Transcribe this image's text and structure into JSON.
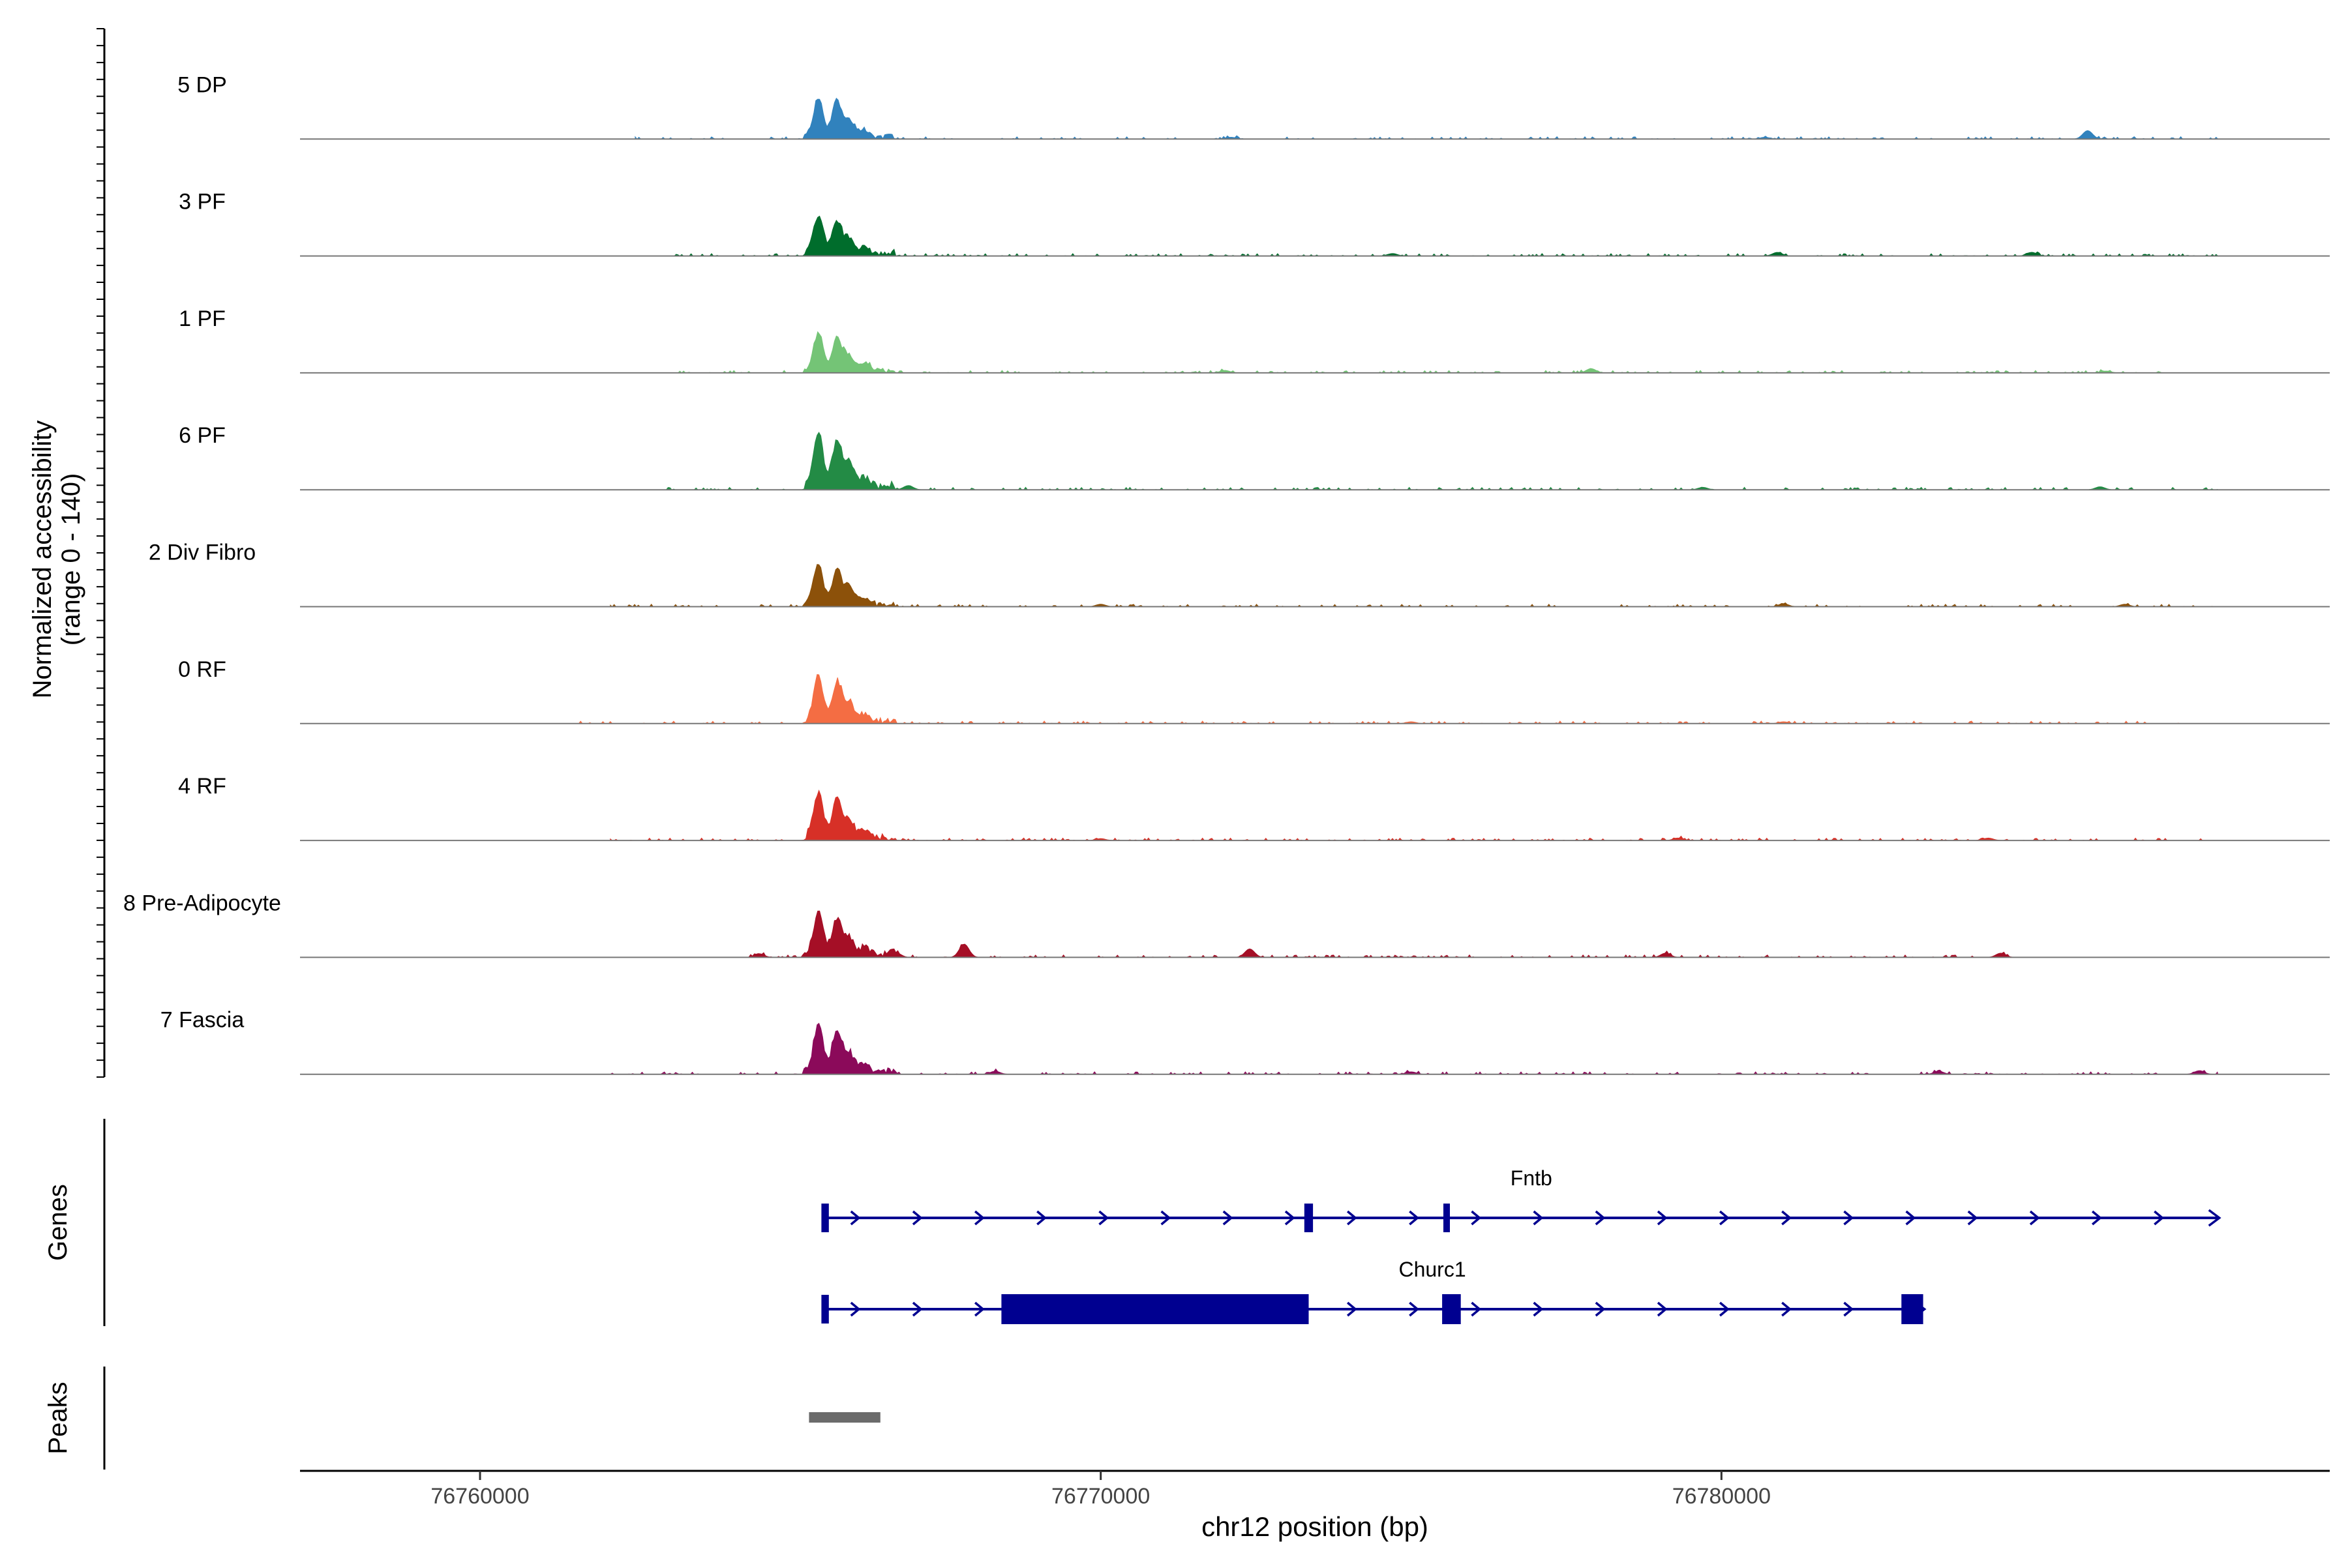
{
  "chart_data": {
    "type": "area",
    "xlabel": "chr12 position (bp)",
    "ylabel": "Normalized accessibility",
    "ylabel_range": "(range 0 - 140)",
    "ylim": [
      0,
      140
    ],
    "xlim": [
      76757100,
      76789800
    ],
    "x_ticks": [
      {
        "value": 76760000,
        "label": "76760000"
      },
      {
        "value": 76770000,
        "label": "76770000"
      },
      {
        "value": 76780000,
        "label": "76780000"
      }
    ],
    "grid": false,
    "legend": "none",
    "tracks": [
      {
        "name": "5 DP",
        "color": "#3182bd",
        "data_start": 76762500,
        "data_end": 76788000,
        "peak_scale": 0.72,
        "extra_peaks": [
          [
            76785900,
            14
          ],
          [
            76772100,
            3
          ],
          [
            76780700,
            3
          ]
        ]
      },
      {
        "name": "3 PF",
        "color": "#006d2c",
        "data_start": 76763100,
        "data_end": 76788000,
        "peak_scale": 0.68,
        "extra_peaks": [
          [
            76780900,
            6
          ],
          [
            76785000,
            6
          ],
          [
            76774700,
            4
          ]
        ]
      },
      {
        "name": "1 PF",
        "color": "#74c476",
        "data_start": 76763100,
        "data_end": 76787400,
        "peak_scale": 0.68,
        "extra_peaks": [
          [
            76777900,
            7
          ],
          [
            76772000,
            4
          ],
          [
            76786200,
            3
          ]
        ]
      },
      {
        "name": "6 PF",
        "color": "#238b45",
        "data_start": 76763000,
        "data_end": 76788000,
        "peak_scale": 1.0,
        "extra_peaks": [
          [
            76766900,
            7
          ],
          [
            76786100,
            5
          ],
          [
            76779700,
            4
          ]
        ]
      },
      {
        "name": "2 Div Fibro",
        "color": "#8c510a",
        "data_start": 76762100,
        "data_end": 76787900,
        "peak_scale": 0.72,
        "extra_peaks": [
          [
            76781000,
            5
          ],
          [
            76786500,
            4
          ],
          [
            76770000,
            4
          ]
        ]
      },
      {
        "name": "0 RF",
        "color": "#f46d43",
        "data_start": 76761500,
        "data_end": 76787700,
        "peak_scale": 0.82,
        "extra_peaks": [
          [
            76781000,
            3
          ],
          [
            76775000,
            3
          ]
        ]
      },
      {
        "name": "4 RF",
        "color": "#d73027",
        "data_start": 76762100,
        "data_end": 76787900,
        "peak_scale": 0.82,
        "extra_peaks": [
          [
            76779300,
            4
          ],
          [
            76784300,
            4
          ],
          [
            76770000,
            3
          ]
        ]
      },
      {
        "name": "8 Pre-Adipocyte",
        "color": "#a50f26",
        "data_start": 76764300,
        "data_end": 76784700,
        "peak_scale": 0.78,
        "extra_peaks": [
          [
            76767800,
            22
          ],
          [
            76772400,
            14
          ],
          [
            76779100,
            7
          ],
          [
            76784500,
            7
          ],
          [
            76764500,
            6
          ],
          [
            76766700,
            8
          ]
        ]
      },
      {
        "name": "7 Fascia",
        "color": "#8b0a5a",
        "data_start": 76762100,
        "data_end": 76788000,
        "peak_scale": 0.85,
        "extra_peaks": [
          [
            76787700,
            6
          ],
          [
            76783500,
            5
          ],
          [
            76775000,
            4
          ],
          [
            76768300,
            5
          ]
        ]
      }
    ],
    "main_peaks": [
      [
        76765450,
        92
      ],
      [
        76765750,
        78
      ],
      [
        76765950,
        38
      ],
      [
        76766200,
        16
      ]
    ],
    "genes_label": "Genes",
    "genes": [
      {
        "name": "Fntb",
        "start": 76765550,
        "end": 76788000,
        "strand": "+",
        "exons": [
          [
            76765500,
            76765620
          ],
          [
            76773280,
            76773420
          ],
          [
            76775520,
            76775600
          ]
        ],
        "label_x": 76776600
      },
      {
        "name": "Churc1",
        "start": 76765550,
        "end": 76783250,
        "strand": "+",
        "exons": [
          [
            76765500,
            76765620
          ],
          [
            76768400,
            76773350
          ],
          [
            76775500,
            76775800
          ],
          [
            76782900,
            76783250
          ]
        ],
        "label_x": 76774800
      }
    ],
    "peaks_label": "Peaks",
    "peaks": [
      [
        76765300,
        76766450
      ]
    ],
    "peak_color": "#6b6b6b",
    "gene_color": "#000090"
  }
}
